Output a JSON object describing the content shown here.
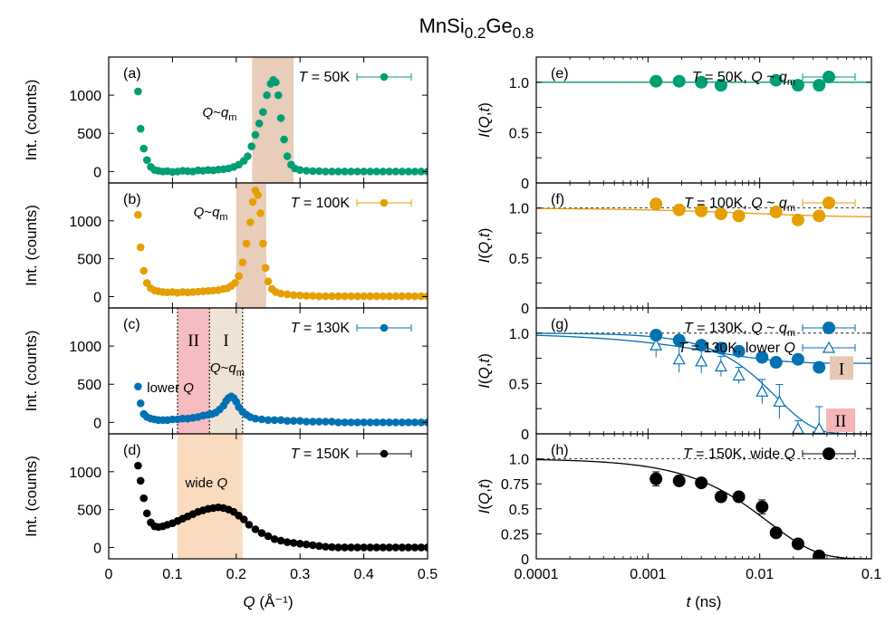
{
  "title_main": "MnSi",
  "title_sub1": "0.2",
  "title_mid": "Ge",
  "title_sub2": "0.8",
  "chart_data": [
    {
      "id": "a",
      "type": "scatter",
      "panel_label": "(a)",
      "legend": {
        "prefix": "T",
        "text": " = 50K"
      },
      "color": "#009e73",
      "xlim": [
        0,
        0.5
      ],
      "ylim": [
        -150,
        1500
      ],
      "yticks": [
        0,
        500,
        1000
      ],
      "ylabel": "Int. (counts)",
      "shade": [
        {
          "x0": 0.225,
          "x1": 0.29,
          "color": "#e6c8b2"
        }
      ],
      "annotation": "Q~q_m",
      "x": [
        0.046,
        0.05,
        0.055,
        0.06,
        0.066,
        0.072,
        0.078,
        0.085,
        0.092,
        0.1,
        0.108,
        0.116,
        0.124,
        0.132,
        0.14,
        0.148,
        0.156,
        0.164,
        0.172,
        0.18,
        0.188,
        0.196,
        0.204,
        0.212,
        0.218,
        0.224,
        0.23,
        0.236,
        0.242,
        0.248,
        0.254,
        0.258,
        0.262,
        0.266,
        0.27,
        0.275,
        0.28,
        0.286,
        0.292,
        0.3,
        0.31,
        0.32,
        0.33,
        0.34,
        0.35,
        0.36,
        0.37,
        0.38,
        0.39,
        0.4,
        0.41,
        0.42,
        0.43,
        0.44,
        0.45,
        0.46,
        0.47,
        0.48,
        0.49,
        0.5
      ],
      "y": [
        1050,
        560,
        300,
        150,
        60,
        20,
        10,
        0,
        5,
        -5,
        0,
        10,
        5,
        0,
        15,
        10,
        20,
        15,
        25,
        30,
        40,
        60,
        90,
        140,
        200,
        330,
        480,
        630,
        780,
        1000,
        1150,
        1200,
        1170,
        1000,
        700,
        420,
        200,
        90,
        40,
        20,
        10,
        5,
        5,
        0,
        0,
        0,
        0,
        0,
        0,
        0,
        0,
        0,
        0,
        0,
        0,
        0,
        0,
        0,
        0,
        0
      ]
    },
    {
      "id": "b",
      "type": "scatter",
      "panel_label": "(b)",
      "legend": {
        "prefix": "T",
        "text": " = 100K"
      },
      "color": "#e69f00",
      "xlim": [
        0,
        0.5
      ],
      "ylim": [
        -150,
        1500
      ],
      "yticks": [
        0,
        500,
        1000
      ],
      "ylabel": "Int. (counts)",
      "shade": [
        {
          "x0": 0.2,
          "x1": 0.247,
          "color": "#e6c8b2"
        }
      ],
      "annotation": "Q~q_m",
      "x": [
        0.046,
        0.05,
        0.055,
        0.06,
        0.066,
        0.072,
        0.078,
        0.085,
        0.092,
        0.1,
        0.108,
        0.116,
        0.124,
        0.132,
        0.14,
        0.148,
        0.156,
        0.164,
        0.172,
        0.18,
        0.186,
        0.192,
        0.198,
        0.204,
        0.21,
        0.216,
        0.222,
        0.226,
        0.23,
        0.234,
        0.238,
        0.242,
        0.246,
        0.25,
        0.256,
        0.262,
        0.27,
        0.28,
        0.29,
        0.3,
        0.31,
        0.32,
        0.33,
        0.34,
        0.35,
        0.36,
        0.37,
        0.38,
        0.39,
        0.4,
        0.41,
        0.42,
        0.43,
        0.44,
        0.45,
        0.46,
        0.47,
        0.48,
        0.49,
        0.5
      ],
      "y": [
        1080,
        650,
        340,
        180,
        110,
        80,
        70,
        60,
        55,
        60,
        50,
        60,
        55,
        60,
        65,
        70,
        75,
        80,
        85,
        100,
        110,
        140,
        180,
        270,
        450,
        700,
        980,
        1250,
        1400,
        1340,
        1100,
        700,
        380,
        200,
        100,
        60,
        40,
        30,
        20,
        15,
        10,
        10,
        5,
        5,
        5,
        5,
        5,
        5,
        5,
        5,
        5,
        5,
        5,
        5,
        5,
        5,
        5,
        5,
        5,
        5
      ]
    },
    {
      "id": "c",
      "type": "scatter",
      "panel_label": "(c)",
      "legend": {
        "prefix": "T",
        "text": " = 130K"
      },
      "color": "#0072b2",
      "xlim": [
        0,
        0.5
      ],
      "ylim": [
        -150,
        1500
      ],
      "yticks": [
        0,
        500,
        1000
      ],
      "ylabel": "Int. (counts)",
      "shade": [
        {
          "x0": 0.108,
          "x1": 0.158,
          "color": "#f4b6ba",
          "label": "II"
        },
        {
          "x0": 0.158,
          "x1": 0.21,
          "color": "#ede0d2",
          "label": "I"
        }
      ],
      "dashed_x": [
        0.108,
        0.158,
        0.21
      ],
      "annotation": "Q~q_m",
      "annotation2": "lower",
      "x": [
        0.046,
        0.05,
        0.055,
        0.06,
        0.066,
        0.072,
        0.078,
        0.085,
        0.092,
        0.1,
        0.108,
        0.116,
        0.124,
        0.132,
        0.14,
        0.148,
        0.156,
        0.162,
        0.168,
        0.174,
        0.18,
        0.184,
        0.188,
        0.192,
        0.196,
        0.2,
        0.204,
        0.21,
        0.216,
        0.222,
        0.23,
        0.24,
        0.25,
        0.26,
        0.27,
        0.28,
        0.29,
        0.3,
        0.31,
        0.32,
        0.33,
        0.34,
        0.35,
        0.36,
        0.37,
        0.38,
        0.39,
        0.4,
        0.41,
        0.42,
        0.43,
        0.44,
        0.45,
        0.46,
        0.47,
        0.48,
        0.49,
        0.5
      ],
      "y": [
        470,
        250,
        110,
        70,
        50,
        40,
        30,
        30,
        30,
        40,
        40,
        50,
        50,
        60,
        70,
        90,
        100,
        110,
        130,
        170,
        220,
        280,
        320,
        340,
        320,
        270,
        200,
        140,
        100,
        70,
        50,
        40,
        30,
        30,
        30,
        20,
        20,
        20,
        10,
        10,
        10,
        10,
        10,
        0,
        0,
        0,
        0,
        0,
        0,
        0,
        0,
        0,
        0,
        0,
        0,
        0,
        0,
        0
      ]
    },
    {
      "id": "d",
      "type": "scatter",
      "panel_label": "(d)",
      "legend": {
        "prefix": "T",
        "text": " = 150K"
      },
      "color": "#000000",
      "xlim": [
        0,
        0.5
      ],
      "ylim": [
        -150,
        1500
      ],
      "yticks": [
        0,
        500,
        1000
      ],
      "ylabel": "Int. (counts)",
      "xticks": [
        0,
        0.1,
        0.2,
        0.3,
        0.4,
        0.5
      ],
      "xlabel": "Q (Å⁻¹)",
      "shade": [
        {
          "x0": 0.108,
          "x1": 0.21,
          "color": "#fbd7b6"
        }
      ],
      "annotation": "wide",
      "x": [
        0.046,
        0.05,
        0.055,
        0.06,
        0.066,
        0.072,
        0.078,
        0.085,
        0.092,
        0.1,
        0.108,
        0.116,
        0.124,
        0.132,
        0.14,
        0.148,
        0.156,
        0.164,
        0.172,
        0.18,
        0.188,
        0.196,
        0.204,
        0.212,
        0.22,
        0.23,
        0.24,
        0.25,
        0.26,
        0.27,
        0.28,
        0.29,
        0.3,
        0.31,
        0.32,
        0.33,
        0.34,
        0.35,
        0.36,
        0.37,
        0.38,
        0.39,
        0.4,
        0.41,
        0.42,
        0.43,
        0.44,
        0.45,
        0.46,
        0.47,
        0.48,
        0.49,
        0.5
      ],
      "y": [
        1080,
        880,
        650,
        450,
        330,
        280,
        270,
        280,
        300,
        320,
        350,
        380,
        410,
        440,
        470,
        490,
        510,
        520,
        530,
        520,
        500,
        470,
        420,
        370,
        300,
        240,
        190,
        150,
        110,
        90,
        70,
        60,
        50,
        40,
        30,
        20,
        10,
        5,
        0,
        0,
        0,
        0,
        0,
        0,
        0,
        0,
        0,
        0,
        0,
        0,
        0,
        0,
        0
      ]
    },
    {
      "id": "e",
      "type": "scatter",
      "panel_label": "(e)",
      "legend": {
        "prefix": "T",
        "text": " = 50K, Q ~ q_m"
      },
      "color": "#009e73",
      "xscale": "log",
      "xlim": [
        0.0001,
        0.1
      ],
      "ylim": [
        0,
        1.25
      ],
      "yticks": [
        0,
        0.5,
        1.0
      ],
      "ytick_labels": [
        "0",
        "0.5",
        "1.0"
      ],
      "ylabel": "I(Q,t)",
      "hline": 1.0,
      "x": [
        0.00118,
        0.0019,
        0.003,
        0.0045,
        0.014,
        0.022,
        0.034
      ],
      "y": [
        1.01,
        1.01,
        1.0,
        0.97,
        1.02,
        0.97,
        0.97
      ],
      "fit": {
        "kind": "flat",
        "value": 1.0
      }
    },
    {
      "id": "f",
      "type": "scatter",
      "panel_label": "(f)",
      "legend": {
        "prefix": "T",
        "text": " = 100K, Q ~ q_m"
      },
      "color": "#e69f00",
      "xscale": "log",
      "xlim": [
        0.0001,
        0.1
      ],
      "ylim": [
        0,
        1.25
      ],
      "yticks": [
        0,
        0.5,
        1.0
      ],
      "ytick_labels": [
        "0",
        "0.5",
        "1.0"
      ],
      "ylabel": "I(Q,t)",
      "hline": 1.0,
      "x": [
        0.00118,
        0.0019,
        0.003,
        0.0045,
        0.0065,
        0.014,
        0.022,
        0.034
      ],
      "y": [
        1.04,
        0.98,
        0.97,
        0.94,
        0.92,
        0.96,
        0.88,
        0.92
      ],
      "fit": {
        "kind": "relax",
        "A": 0.09,
        "tau": 0.01,
        "beta": 0.6
      }
    },
    {
      "id": "g",
      "type": "scatter",
      "panel_label": "(g)",
      "legend": {
        "prefix": "T",
        "text": " = 130K, Q ~ q_m"
      },
      "legend2": {
        "prefix": "T",
        "text": " = 130K, lower Q"
      },
      "color": "#0072b2",
      "xscale": "log",
      "xlim": [
        0.0001,
        0.1
      ],
      "ylim": [
        0,
        1.25
      ],
      "yticks": [
        0,
        0.5,
        1.0
      ],
      "ytick_labels": [
        "0",
        "0.5",
        "1.0"
      ],
      "ylabel": "I(Q,t)",
      "hline": 1.0,
      "x": [
        0.00118,
        0.0019,
        0.003,
        0.0045,
        0.0065,
        0.0105,
        0.014,
        0.022,
        0.034
      ],
      "y": [
        0.98,
        0.93,
        0.88,
        0.85,
        0.82,
        0.76,
        0.71,
        0.74,
        0.66
      ],
      "fit": {
        "kind": "relax",
        "A": 0.3,
        "tau": 0.004,
        "beta": 0.7
      },
      "x2": [
        0.00118,
        0.0019,
        0.003,
        0.0045,
        0.0065,
        0.0105,
        0.015,
        0.022,
        0.034
      ],
      "y2": [
        0.88,
        0.74,
        0.72,
        0.67,
        0.58,
        0.42,
        0.32,
        0.05,
        0.05
      ],
      "err2": [
        0.12,
        0.13,
        0.12,
        0.1,
        0.08,
        0.12,
        0.17,
        0.08,
        0.22
      ],
      "fit2": {
        "kind": "relax",
        "A": 1.0,
        "tau": 0.014,
        "beta": 1.3
      },
      "region_labels": [
        "I",
        "II"
      ]
    },
    {
      "id": "h",
      "type": "scatter",
      "panel_label": "(h)",
      "legend": {
        "prefix": "T",
        "text": " = 150K, wide Q"
      },
      "color": "#000000",
      "xscale": "log",
      "xlim": [
        0.0001,
        0.1
      ],
      "ylim": [
        0,
        1.25
      ],
      "yticks": [
        0,
        0.25,
        0.5,
        0.75,
        1.0
      ],
      "ytick_labels": [
        "0",
        "0.25",
        "0.5",
        "0.75",
        "1.0"
      ],
      "ylabel": "I(Q,t)",
      "xticks": [
        0.0001,
        0.001,
        0.01,
        0.1
      ],
      "xtick_labels": [
        "0.0001",
        "0.001",
        "0.01",
        "0.1"
      ],
      "xlabel": "t (ns)",
      "hline": 1.0,
      "x": [
        0.00118,
        0.0019,
        0.003,
        0.0045,
        0.0065,
        0.0105,
        0.014,
        0.022,
        0.034
      ],
      "y": [
        0.8,
        0.78,
        0.76,
        0.62,
        0.62,
        0.52,
        0.26,
        0.15,
        0.03
      ],
      "err": [
        0.07,
        0.05,
        0.04,
        0.04,
        0.04,
        0.07,
        0.04,
        0.04,
        0.04
      ],
      "fit": {
        "kind": "relax",
        "A": 1.0,
        "tau": 0.012,
        "beta": 1.0
      }
    }
  ]
}
